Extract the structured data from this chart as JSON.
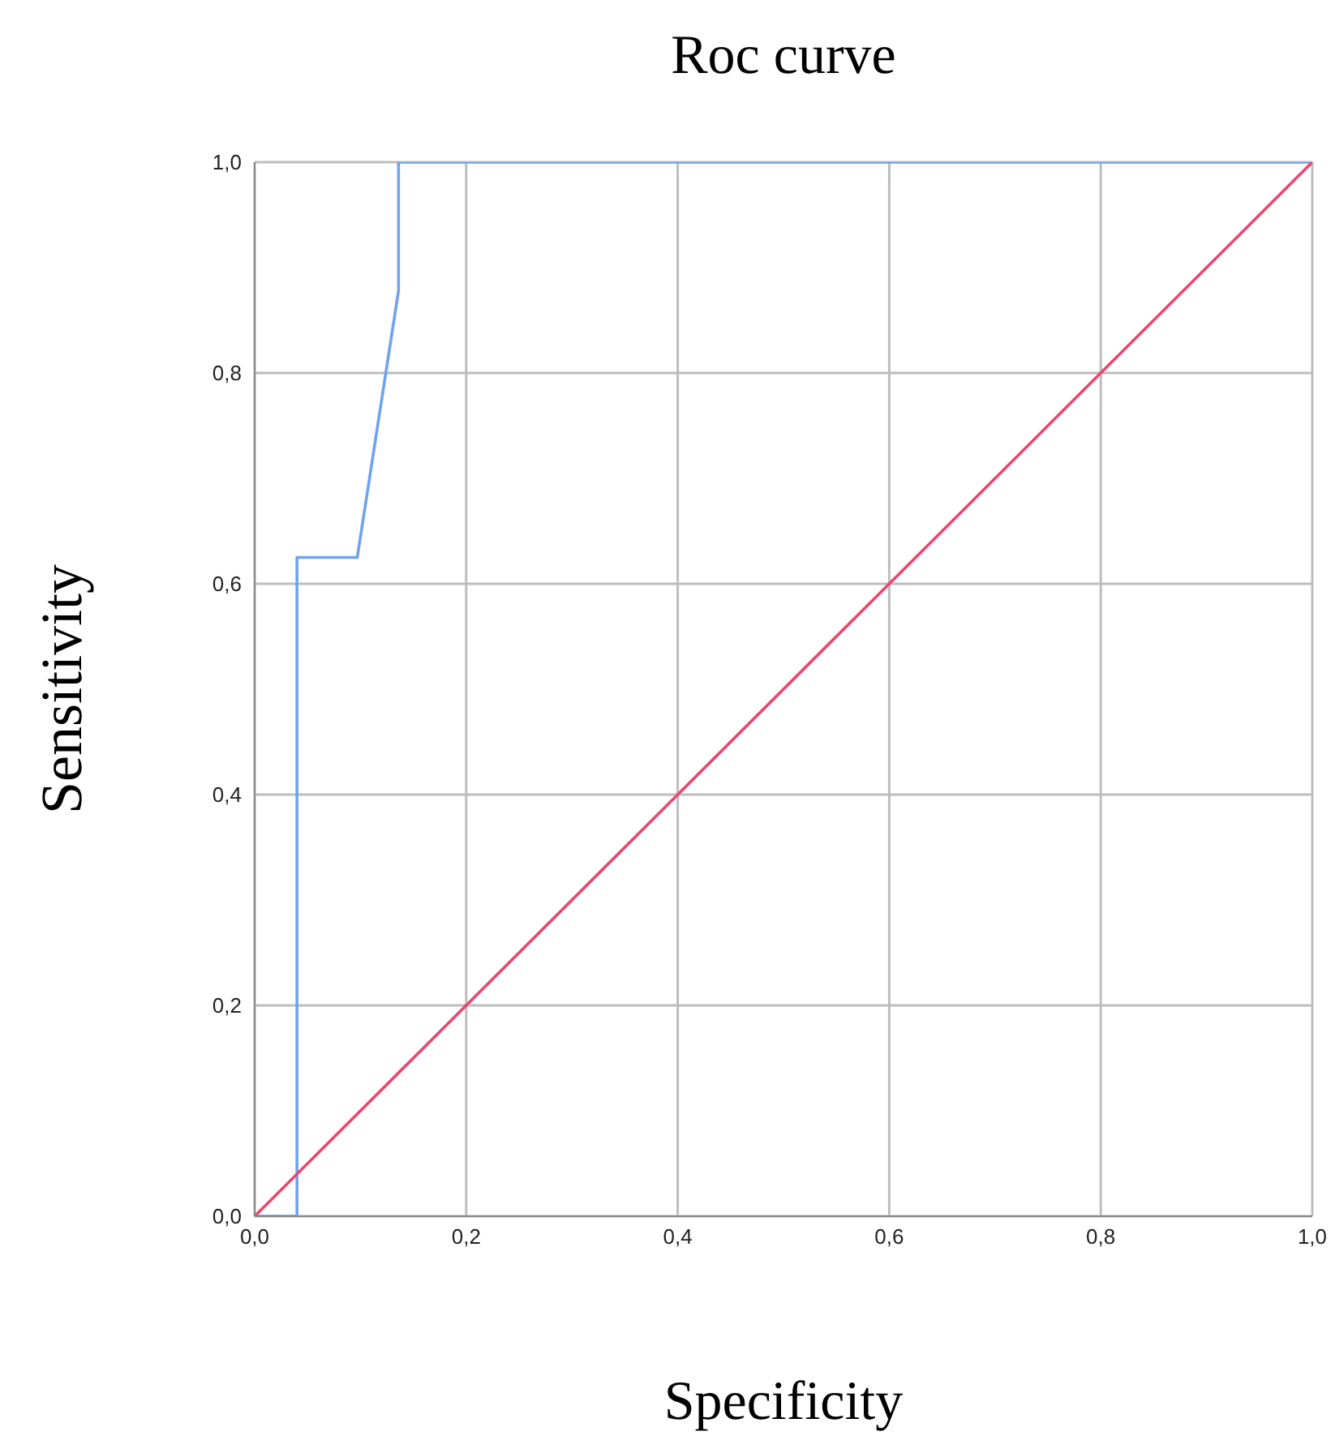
{
  "chart_data": {
    "type": "line",
    "title": "Roc curve",
    "xlabel": "Specificity",
    "ylabel": "Sensitivity",
    "series": [
      {
        "color": "#6fa3ee",
        "x": [
          0,
          0.04,
          0.04,
          0.097,
          0.136,
          0.136,
          1
        ],
        "values": [
          0,
          0,
          0.625,
          0.625,
          0.878,
          1,
          1
        ]
      },
      {
        "color": "#e8486f",
        "x": [
          0,
          1
        ],
        "values": [
          0,
          1
        ]
      }
    ],
    "xlim": [
      0,
      1
    ],
    "ylim": [
      0,
      1
    ],
    "xticks": [
      {
        "value": 0,
        "label": "0,0"
      },
      {
        "value": 0.2,
        "label": "0,2"
      },
      {
        "value": 0.4,
        "label": "0,4"
      },
      {
        "value": 0.6,
        "label": "0,6"
      },
      {
        "value": 0.8,
        "label": "0,8"
      },
      {
        "value": 1,
        "label": "1,0"
      }
    ],
    "yticks": [
      {
        "value": 0,
        "label": "0,0"
      },
      {
        "value": 0.2,
        "label": "0,2"
      },
      {
        "value": 0.4,
        "label": "0,4"
      },
      {
        "value": 0.6,
        "label": "0,6"
      },
      {
        "value": 0.8,
        "label": "0,8"
      },
      {
        "value": 1,
        "label": "1,0"
      }
    ],
    "grid": true,
    "legend": false,
    "marker": "none",
    "line_style": "solid"
  }
}
